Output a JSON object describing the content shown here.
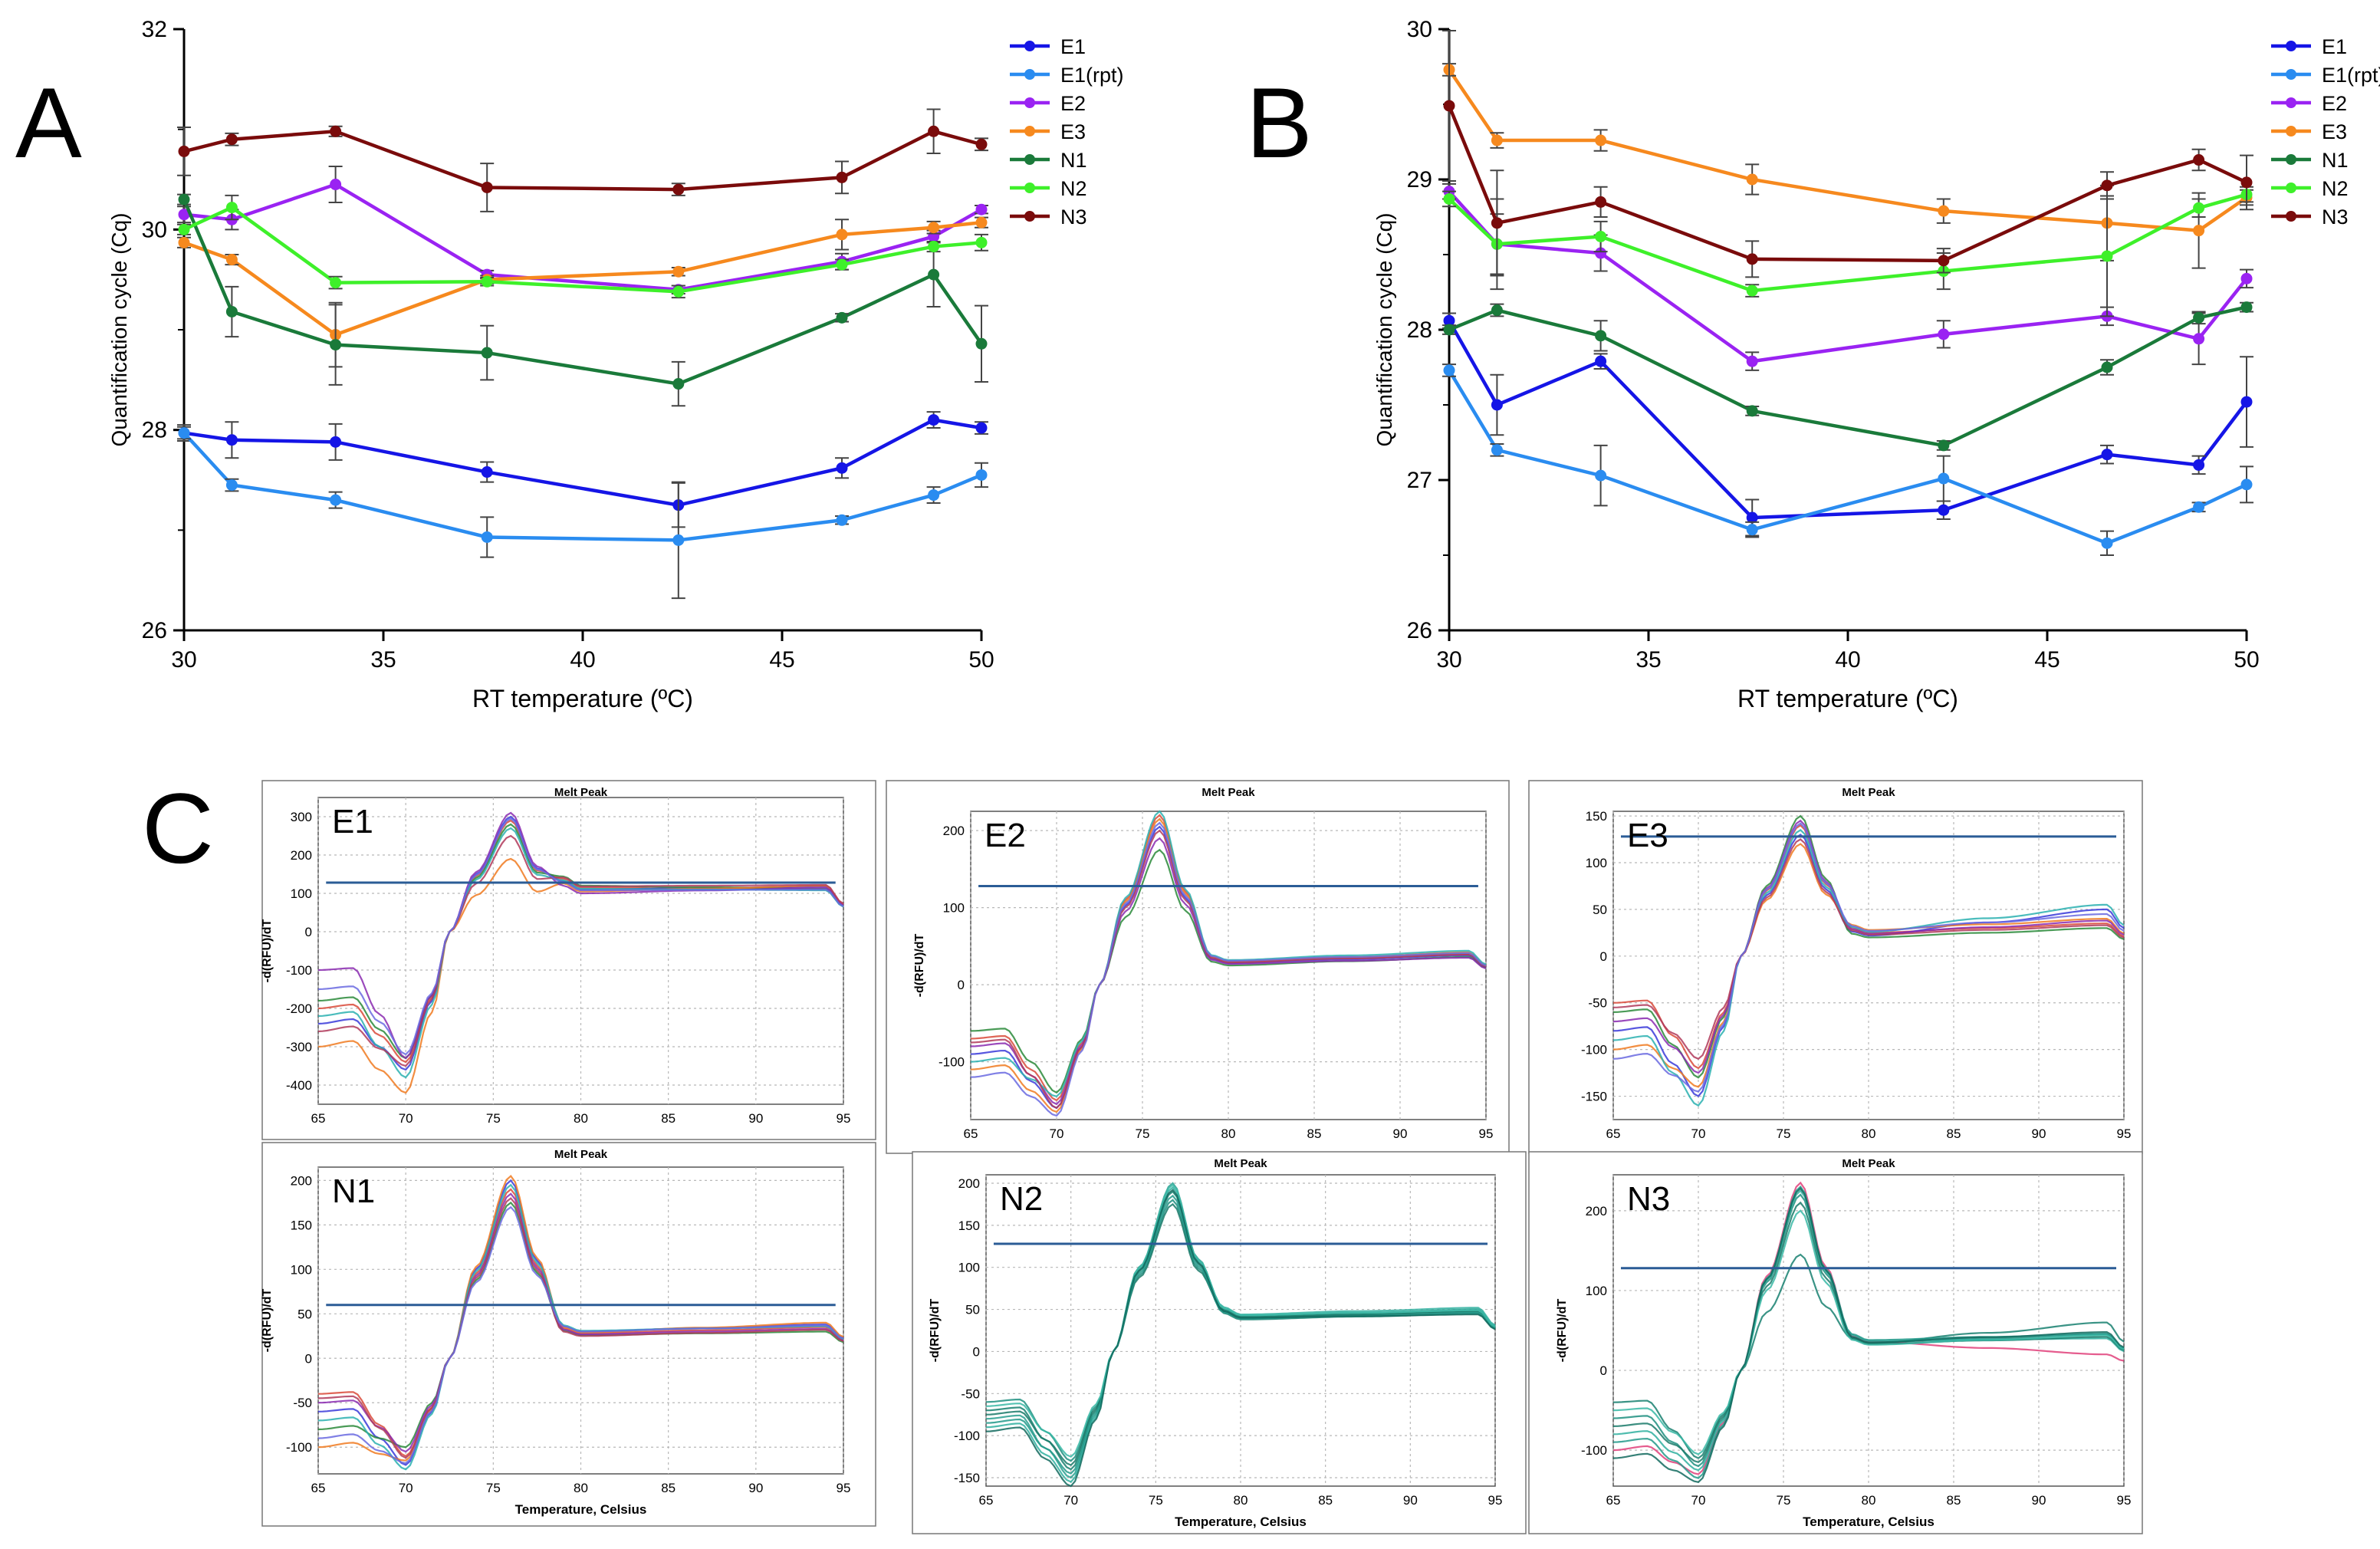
{
  "colors": {
    "E1": "#1515e6",
    "E1(rpt)": "#2a8cf0",
    "E2": "#9a23f2",
    "E3": "#f6891e",
    "N1": "#1a7a3a",
    "N2": "#3ef02a",
    "N3": "#7a0b0b",
    "melt_threshold": "#2b5c96",
    "axis": "#000000",
    "grid": "#b8b8b8"
  },
  "chart_data": [
    {
      "id": "A",
      "panel_label": "A",
      "type": "line",
      "xlabel": "RT temperature (ºC)",
      "ylabel": "Quantification cycle (Cq)",
      "xlim": [
        30,
        50
      ],
      "ylim": [
        26,
        32
      ],
      "xticks": [
        "30",
        "35",
        "40",
        "45",
        "50"
      ],
      "yticks": [
        "26",
        "28",
        "30",
        "32"
      ],
      "x": [
        30,
        31.2,
        33.8,
        37.6,
        42.4,
        46.5,
        48.8,
        50
      ],
      "series": [
        {
          "name": "E1",
          "values": [
            27.97,
            27.9,
            27.88,
            27.58,
            27.25,
            27.62,
            28.1,
            28.02
          ],
          "errors": [
            0.08,
            0.18,
            0.18,
            0.1,
            0.22,
            0.1,
            0.08,
            0.06
          ]
        },
        {
          "name": "E1(rpt)",
          "values": [
            27.97,
            27.45,
            27.3,
            26.93,
            26.9,
            27.1,
            27.35,
            27.55
          ],
          "errors": [
            0.06,
            0.06,
            0.08,
            0.2,
            0.58,
            0.04,
            0.08,
            0.12
          ]
        },
        {
          "name": "E2",
          "values": [
            30.15,
            30.1,
            30.45,
            29.55,
            29.4,
            29.68,
            29.93,
            30.2
          ],
          "errors": [
            0.08,
            0.1,
            0.18,
            0.04,
            0.04,
            0.08,
            0.06,
            0.04
          ]
        },
        {
          "name": "E3",
          "values": [
            29.87,
            29.7,
            28.95,
            29.5,
            29.58,
            29.95,
            30.02,
            30.07
          ],
          "errors": [
            0.05,
            0.05,
            0.32,
            0.04,
            0.04,
            0.15,
            0.06,
            0.05
          ]
        },
        {
          "name": "N1",
          "values": [
            30.3,
            29.18,
            28.85,
            28.77,
            28.46,
            29.12,
            29.55,
            28.86
          ],
          "errors": [
            0.05,
            0.25,
            0.4,
            0.27,
            0.22,
            0.04,
            0.32,
            0.38
          ]
        },
        {
          "name": "N2",
          "values": [
            30.0,
            30.22,
            29.47,
            29.48,
            29.38,
            29.65,
            29.83,
            29.87
          ],
          "errors": [
            0.05,
            0.12,
            0.06,
            0.04,
            0.06,
            0.05,
            0.05,
            0.08
          ]
        },
        {
          "name": "N3",
          "values": [
            30.78,
            30.9,
            30.98,
            30.42,
            30.4,
            30.52,
            30.98,
            30.85
          ],
          "errors": [
            0.24,
            0.06,
            0.05,
            0.24,
            0.06,
            0.16,
            0.22,
            0.06
          ]
        }
      ],
      "legend": [
        "E1",
        "E1(rpt)",
        "E2",
        "E3",
        "N1",
        "N2",
        "N3"
      ],
      "legend_position": "top-right"
    },
    {
      "id": "B",
      "panel_label": "B",
      "type": "line",
      "xlabel": "RT temperature (ºC)",
      "ylabel": "Quantification cycle (Cq)",
      "xlim": [
        30,
        50
      ],
      "ylim": [
        26,
        30
      ],
      "xticks": [
        "30",
        "35",
        "40",
        "45",
        "50"
      ],
      "yticks": [
        "26",
        "27",
        "28",
        "29",
        "30"
      ],
      "x": [
        30,
        31.2,
        33.8,
        37.6,
        42.4,
        46.5,
        48.8,
        50
      ],
      "series": [
        {
          "name": "E1",
          "values": [
            28.06,
            27.5,
            27.79,
            26.75,
            26.8,
            27.17,
            27.1,
            27.52
          ],
          "errors": [
            0.05,
            0.2,
            0.05,
            0.12,
            0.06,
            0.06,
            0.06,
            0.3
          ]
        },
        {
          "name": "E1(rpt)",
          "values": [
            27.73,
            27.2,
            27.03,
            26.67,
            27.01,
            26.58,
            26.82,
            26.97
          ],
          "errors": [
            0.04,
            0.04,
            0.2,
            0.05,
            0.15,
            0.08,
            0.03,
            0.12
          ]
        },
        {
          "name": "E2",
          "values": [
            28.92,
            28.57,
            28.51,
            27.79,
            27.97,
            28.09,
            27.94,
            28.34
          ],
          "errors": [
            0.05,
            0.3,
            0.12,
            0.06,
            0.09,
            0.06,
            0.17,
            0.06
          ]
        },
        {
          "name": "E3",
          "values": [
            29.73,
            29.26,
            29.26,
            29.0,
            28.79,
            28.71,
            28.66,
            28.88
          ],
          "errors": [
            0.04,
            0.05,
            0.07,
            0.1,
            0.08,
            0.25,
            0.25,
            0.05
          ]
        },
        {
          "name": "N1",
          "values": [
            28.0,
            28.13,
            27.96,
            27.46,
            27.23,
            27.75,
            28.08,
            28.15
          ],
          "errors": [
            0.03,
            0.04,
            0.1,
            0.03,
            0.03,
            0.05,
            0.04,
            0.03
          ]
        },
        {
          "name": "N2",
          "values": [
            28.87,
            28.57,
            28.62,
            28.26,
            28.39,
            28.49,
            28.81,
            28.9
          ],
          "errors": [
            0.05,
            0.2,
            0.1,
            0.04,
            0.12,
            0.4,
            0.06,
            0.05
          ]
        },
        {
          "name": "N3",
          "values": [
            29.49,
            28.71,
            28.85,
            28.47,
            28.46,
            28.96,
            29.13,
            28.98
          ],
          "errors": [
            0.5,
            0.35,
            0.1,
            0.12,
            0.08,
            0.09,
            0.07,
            0.18
          ]
        }
      ],
      "legend": [
        "E1",
        "E1(rpt)",
        "E2",
        "E3",
        "N1",
        "N2",
        "N3"
      ],
      "legend_position": "top-right"
    }
  ],
  "panel_c": {
    "label": "C",
    "plots": [
      {
        "id": "E1",
        "title": "Melt Peak",
        "label": "E1",
        "ylabel": "-d(RFU)/dT",
        "xlabel": "",
        "xlim": [
          65,
          95
        ],
        "ylim": [
          -450,
          350
        ],
        "yticks": [
          "300",
          "200",
          "100",
          "0",
          "-100",
          "-200",
          "-300",
          "-400"
        ],
        "xticks": [
          "65",
          "70",
          "75",
          "80",
          "85",
          "90",
          "95"
        ],
        "threshold": 128,
        "palette": [
          "#d94a3a",
          "#3a3ad9",
          "#2a8a3a",
          "#f07a20",
          "#8a2ab0",
          "#2ab0b0",
          "#b03a5a",
          "#6a6ae0"
        ],
        "curves": [
          [
            -200,
            -340,
            150,
            290,
            115,
            110
          ],
          [
            -240,
            -360,
            140,
            300,
            110,
            118
          ],
          [
            -180,
            -330,
            160,
            280,
            120,
            112
          ],
          [
            -300,
            -420,
            120,
            190,
            105,
            120
          ],
          [
            -100,
            -330,
            60,
            310,
            100,
            115
          ],
          [
            -220,
            -380,
            130,
            270,
            112,
            108
          ],
          [
            -260,
            -350,
            145,
            250,
            118,
            122
          ],
          [
            -150,
            -320,
            155,
            295,
            108,
            110
          ]
        ]
      },
      {
        "id": "E2",
        "title": "Melt Peak",
        "label": "E2",
        "ylabel": "-d(RFU)/dT",
        "xlabel": "",
        "xlim": [
          65,
          95
        ],
        "ylim": [
          -175,
          225
        ],
        "yticks": [
          "200",
          "100",
          "0",
          "-100"
        ],
        "xticks": [
          "65",
          "70",
          "75",
          "80",
          "85",
          "90",
          "95"
        ],
        "threshold": 128,
        "palette": [
          "#d94a3a",
          "#3a3ad9",
          "#2a8a3a",
          "#f07a20",
          "#8a2ab0",
          "#2ab0b0",
          "#b03a5a",
          "#6a6ae0"
        ],
        "curves": [
          [
            -70,
            -150,
            0,
            220,
            30,
            40
          ],
          [
            -90,
            -160,
            0,
            205,
            28,
            38
          ],
          [
            -60,
            -140,
            0,
            175,
            25,
            36
          ],
          [
            -110,
            -165,
            0,
            215,
            30,
            42
          ],
          [
            -80,
            -155,
            0,
            190,
            27,
            35
          ],
          [
            -100,
            -145,
            0,
            225,
            32,
            44
          ],
          [
            -75,
            -160,
            0,
            200,
            29,
            39
          ],
          [
            -120,
            -170,
            0,
            210,
            31,
            41
          ]
        ]
      },
      {
        "id": "E3",
        "title": "Melt Peak",
        "label": "E3",
        "ylabel": "",
        "xlabel": "",
        "xlim": [
          65,
          95
        ],
        "ylim": [
          -175,
          155
        ],
        "yticks": [
          "150",
          "100",
          "50",
          "0",
          "-50",
          "-100",
          "-150"
        ],
        "xticks": [
          "65",
          "70",
          "75",
          "80",
          "85",
          "90",
          "95"
        ],
        "threshold": 128,
        "palette": [
          "#d94a3a",
          "#3a3ad9",
          "#2a8a3a",
          "#f07a20",
          "#8a2ab0",
          "#2ab0b0",
          "#b03a5a",
          "#6a6ae0"
        ],
        "curves": [
          [
            -50,
            -120,
            0,
            140,
            25,
            35
          ],
          [
            -80,
            -150,
            0,
            130,
            22,
            50
          ],
          [
            -60,
            -130,
            0,
            150,
            20,
            30
          ],
          [
            -100,
            -140,
            0,
            120,
            28,
            40
          ],
          [
            -70,
            -125,
            0,
            145,
            24,
            38
          ],
          [
            -90,
            -160,
            0,
            135,
            26,
            55
          ],
          [
            -55,
            -110,
            0,
            125,
            23,
            33
          ],
          [
            -110,
            -145,
            0,
            142,
            27,
            45
          ]
        ]
      },
      {
        "id": "N1",
        "title": "Melt Peak",
        "label": "N1",
        "ylabel": "-d(RFU)/dT",
        "xlabel": "Temperature, Celsius",
        "xlim": [
          65,
          95
        ],
        "ylim": [
          -130,
          215
        ],
        "yticks": [
          "200",
          "150",
          "100",
          "50",
          "0",
          "-50",
          "-100"
        ],
        "xticks": [
          "65",
          "70",
          "75",
          "80",
          "85",
          "90",
          "95"
        ],
        "threshold": 60,
        "palette": [
          "#d94a3a",
          "#3a3ad9",
          "#2a8a3a",
          "#f07a20",
          "#8a2ab0",
          "#2ab0b0",
          "#b03a5a",
          "#6a6ae0"
        ],
        "curves": [
          [
            -40,
            -110,
            0,
            190,
            28,
            35
          ],
          [
            -60,
            -120,
            0,
            200,
            30,
            38
          ],
          [
            -80,
            -100,
            0,
            175,
            26,
            30
          ],
          [
            -100,
            -115,
            0,
            205,
            29,
            40
          ],
          [
            -50,
            -105,
            0,
            185,
            27,
            33
          ],
          [
            -70,
            -125,
            0,
            195,
            31,
            36
          ],
          [
            -45,
            -112,
            0,
            180,
            25,
            32
          ],
          [
            -90,
            -118,
            0,
            170,
            30,
            37
          ]
        ]
      },
      {
        "id": "N2",
        "title": "Melt Peak",
        "label": "N2",
        "ylabel": "-d(RFU)/dT",
        "xlabel": "Temperature, Celsius",
        "xlim": [
          65,
          95
        ],
        "ylim": [
          -160,
          210
        ],
        "yticks": [
          "200",
          "150",
          "100",
          "50",
          "0",
          "-50",
          "-100",
          "-150"
        ],
        "xticks": [
          "65",
          "70",
          "75",
          "80",
          "85",
          "90",
          "95"
        ],
        "threshold": 128,
        "palette": [
          "#1f8f80",
          "#2aa090",
          "#178070",
          "#30b0a0",
          "#1a7a6a",
          "#22998a",
          "#3ab8a6",
          "#126a5e"
        ],
        "curves": [
          [
            -60,
            -130,
            0,
            180,
            40,
            48
          ],
          [
            -80,
            -150,
            0,
            200,
            42,
            50
          ],
          [
            -70,
            -140,
            0,
            190,
            38,
            45
          ],
          [
            -90,
            -155,
            0,
            195,
            44,
            52
          ],
          [
            -75,
            -135,
            0,
            175,
            41,
            47
          ],
          [
            -85,
            -145,
            0,
            185,
            39,
            46
          ],
          [
            -65,
            -125,
            0,
            198,
            43,
            49
          ],
          [
            -95,
            -160,
            0,
            192,
            40,
            44
          ]
        ]
      },
      {
        "id": "N3",
        "title": "Melt Peak",
        "label": "N3",
        "ylabel": "-d(RFU)/dT",
        "xlabel": "Temperature, Celsius",
        "xlim": [
          65,
          95
        ],
        "ylim": [
          -145,
          245
        ],
        "yticks": [
          "200",
          "100",
          "0",
          "-100"
        ],
        "xticks": [
          "65",
          "70",
          "75",
          "80",
          "85",
          "90",
          "95"
        ],
        "threshold": 128,
        "palette": [
          "#1f8f80",
          "#e0407a",
          "#178070",
          "#30b0a0",
          "#1a7a6a",
          "#22998a",
          "#3ab8a6",
          "#126a5e"
        ],
        "curves": [
          [
            -60,
            -120,
            0,
            220,
            35,
            45
          ],
          [
            -100,
            -130,
            0,
            235,
            36,
            20
          ],
          [
            -40,
            -110,
            0,
            145,
            34,
            60
          ],
          [
            -80,
            -125,
            0,
            225,
            37,
            40
          ],
          [
            -70,
            -115,
            0,
            210,
            33,
            42
          ],
          [
            -90,
            -135,
            0,
            230,
            38,
            46
          ],
          [
            -50,
            -105,
            0,
            200,
            32,
            44
          ],
          [
            -110,
            -140,
            0,
            228,
            35,
            48
          ]
        ]
      }
    ]
  }
}
